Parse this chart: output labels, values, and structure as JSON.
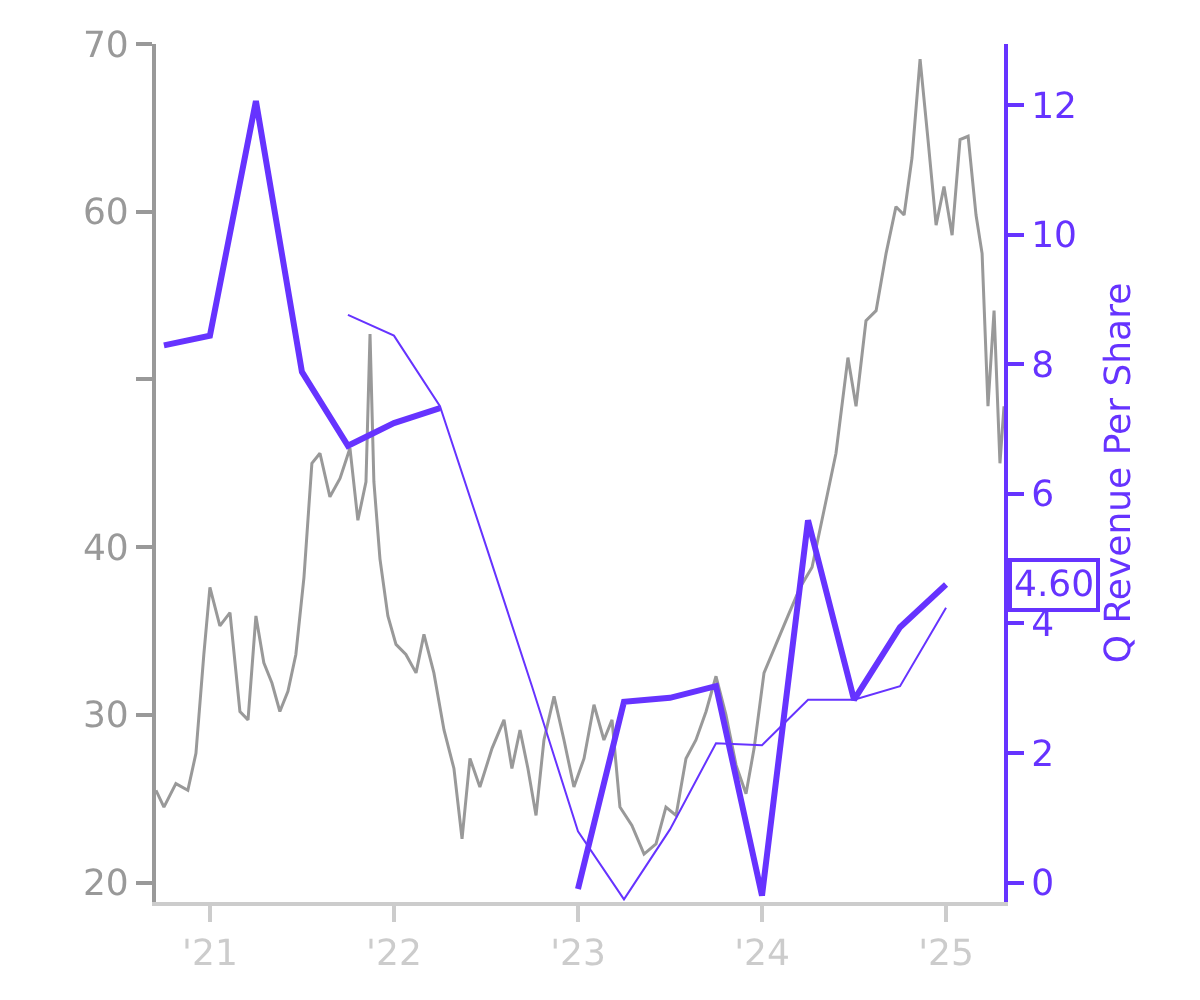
{
  "chart_data": {
    "type": "line",
    "y2label": "Q Revenue Per Share",
    "xlim": [
      2020.707,
      2025.315
    ],
    "xticks": [
      {
        "value": 2021,
        "label": "'21"
      },
      {
        "value": 2022,
        "label": "'22"
      },
      {
        "value": 2023,
        "label": "'23"
      },
      {
        "value": 2024,
        "label": "'24"
      },
      {
        "value": 2025,
        "label": "'25"
      }
    ],
    "ylim": [
      18.84,
      70
    ],
    "yticks": [
      20,
      30,
      40,
      {
        "value": 50,
        "label": null
      },
      60,
      70
    ],
    "y2lim": [
      -0.3,
      12.94
    ],
    "y2ticks": [
      0,
      2,
      4,
      6,
      8,
      10,
      12
    ],
    "marker": "none",
    "line_style": "solid",
    "annotations": [
      "4.60"
    ],
    "series": [
      {
        "color": "#999999",
        "x": [
          2020.707,
          2020.75,
          2020.815,
          2020.88,
          2020.924,
          2020.967,
          2021.0,
          2021.054,
          2021.109,
          2021.163,
          2021.207,
          2021.25,
          2021.293,
          2021.337,
          2021.38,
          2021.424,
          2021.467,
          2021.511,
          2021.554,
          2021.598,
          2021.652,
          2021.707,
          2021.761,
          2021.804,
          2021.848,
          2021.87,
          2021.891,
          2021.924,
          2021.967,
          2022.011,
          2022.065,
          2022.12,
          2022.163,
          2022.217,
          2022.272,
          2022.326,
          2022.37,
          2022.413,
          2022.467,
          2022.533,
          2022.598,
          2022.641,
          2022.685,
          2022.728,
          2022.772,
          2022.815,
          2022.87,
          2022.924,
          2022.978,
          2023.033,
          2023.087,
          2023.141,
          2023.185,
          2023.228,
          2023.293,
          2023.359,
          2023.424,
          2023.478,
          2023.533,
          2023.587,
          2023.641,
          2023.696,
          2023.75,
          2023.804,
          2023.859,
          2023.913,
          2023.957,
          2024.011,
          2024.076,
          2024.141,
          2024.207,
          2024.272,
          2024.337,
          2024.402,
          2024.467,
          2024.511,
          2024.565,
          2024.62,
          2024.674,
          2024.728,
          2024.772,
          2024.815,
          2024.859,
          2024.902,
          2024.946,
          2024.989,
          2025.033,
          2025.076,
          2025.12,
          2025.163,
          2025.196,
          2025.228,
          2025.261,
          2025.293,
          2025.315
        ],
        "values": [
          25.5,
          24.5,
          25.9,
          25.5,
          27.7,
          33.6,
          37.6,
          35.3,
          36.1,
          30.2,
          29.7,
          35.9,
          33.1,
          31.9,
          30.2,
          31.4,
          33.6,
          38.2,
          45.0,
          45.6,
          43.0,
          44.1,
          45.9,
          41.6,
          43.9,
          52.7,
          43.9,
          39.3,
          35.9,
          34.2,
          33.6,
          32.5,
          34.8,
          32.5,
          29.1,
          26.8,
          22.6,
          27.4,
          25.7,
          28.0,
          29.7,
          26.8,
          29.1,
          26.8,
          24.0,
          28.5,
          31.1,
          28.5,
          25.7,
          27.4,
          30.6,
          28.5,
          29.7,
          24.5,
          23.4,
          21.7,
          22.3,
          24.5,
          24.0,
          27.4,
          28.5,
          30.2,
          32.3,
          30.0,
          27.0,
          25.3,
          28.0,
          32.5,
          34.2,
          35.9,
          37.6,
          38.8,
          42.2,
          45.6,
          51.3,
          48.4,
          53.5,
          54.1,
          57.5,
          60.3,
          59.8,
          63.2,
          69.1,
          64.3,
          59.2,
          61.5,
          58.6,
          64.3,
          64.5,
          59.8,
          57.5,
          48.4,
          54.1,
          45.0,
          48.4
        ]
      },
      {
        "axis": "y2",
        "color": "#6633ff",
        "x": [
          2021.75,
          2022.0,
          2022.25,
          2022.5,
          2022.75,
          2023.0,
          2023.25,
          2023.5,
          2023.75,
          2024.0,
          2024.25,
          2024.5,
          2024.75,
          2025.0
        ],
        "values": [
          8.76,
          8.44,
          7.35,
          5.2,
          3.03,
          0.79,
          -0.26,
          0.82,
          2.15,
          2.12,
          2.82,
          2.82,
          3.03,
          4.24
        ]
      },
      {
        "axis": "y2",
        "color": "#6633ff",
        "x": [
          2020.75,
          2021.0,
          2021.25,
          2021.5,
          2021.75,
          2022.0,
          2022.25,
          2022.5,
          2022.75,
          2023.0,
          2023.25,
          2023.5,
          2023.75,
          2024.0,
          2024.25,
          2024.5,
          2024.75,
          2025.0
        ],
        "values": [
          8.29,
          8.44,
          12.06,
          7.88,
          6.74,
          7.09,
          7.32,
          null,
          null,
          -0.1,
          2.79,
          2.85,
          3.03,
          -0.2,
          5.59,
          2.82,
          3.94,
          4.6
        ]
      }
    ]
  }
}
